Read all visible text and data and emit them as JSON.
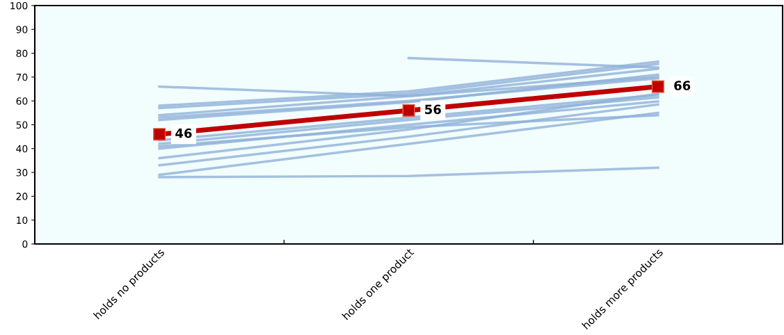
{
  "chart_data": {
    "type": "line",
    "categories": [
      "holds no products",
      "holds one product",
      "holds more products"
    ],
    "ylim": [
      0,
      100
    ],
    "yticks": [
      0,
      10,
      20,
      30,
      40,
      50,
      60,
      70,
      80,
      90,
      100
    ],
    "grid": false,
    "marker": "none",
    "line_style": "solid",
    "series": [
      {
        "color": "#8eb0d8",
        "values": [
          66,
          62,
          70
        ]
      },
      {
        "color": "#8eb0d8",
        "values": [
          58,
          64,
          76.5
        ]
      },
      {
        "color": "#8eb0d8",
        "values": [
          57,
          63,
          75.5
        ]
      },
      {
        "color": "#8eb0d8",
        "values": [
          54,
          62,
          73.5
        ]
      },
      {
        "color": "#8eb0d8",
        "values": [
          53,
          60,
          69.5
        ]
      },
      {
        "color": "#8eb0d8",
        "values": [
          52,
          59.5,
          71
        ]
      },
      {
        "color": "#8eb0d8",
        "values": [
          43.5,
          53,
          62.5
        ]
      },
      {
        "color": "#8eb0d8",
        "values": [
          42,
          52,
          61.5
        ]
      },
      {
        "color": "#8eb0d8",
        "values": [
          40,
          50,
          59.8
        ]
      },
      {
        "color": "#8eb0d8",
        "values": [
          41,
          49,
          54
        ]
      },
      {
        "color": "#8eb0d8",
        "values": [
          36,
          48,
          63
        ]
      },
      {
        "color": "#8eb0d8",
        "values": [
          33,
          45,
          58.5
        ]
      },
      {
        "color": "#8eb0d8",
        "values": [
          29,
          42,
          55
        ]
      },
      {
        "color": "#8eb0d8",
        "values": [
          28,
          28.5,
          32
        ]
      },
      {
        "color": "#8eb0d8",
        "values": [
          null,
          78,
          74
        ]
      },
      {
        "color": "#c00000",
        "values": [
          46,
          56,
          66
        ],
        "marker": "square",
        "value_labels": [
          "46",
          "56",
          "66"
        ]
      }
    ]
  }
}
